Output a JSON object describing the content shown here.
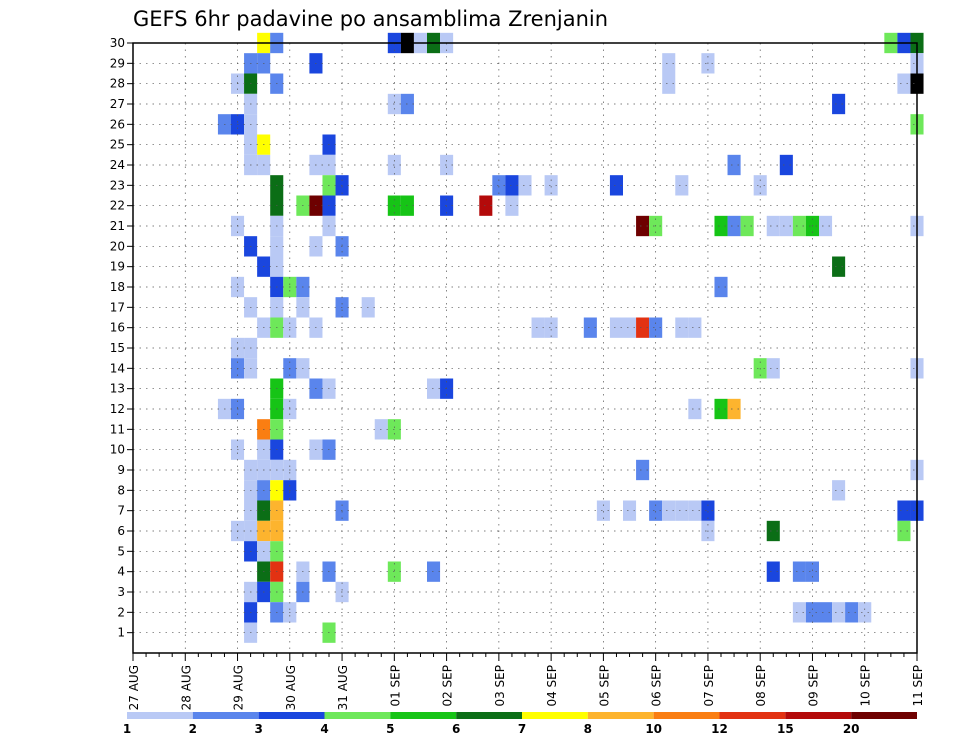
{
  "chart_data": {
    "type": "heatmap",
    "title": "GEFS 6hr padavine po ansamblima Zrenjanin",
    "xlabel": "",
    "ylabel": "",
    "x_tick_labels": [
      "27 AUG",
      "28 AUG",
      "29 AUG",
      "30 AUG",
      "31 AUG",
      "01 SEP",
      "02 SEP",
      "03 SEP",
      "04 SEP",
      "05 SEP",
      "06 SEP",
      "07 SEP",
      "08 SEP",
      "09 SEP",
      "10 SEP",
      "11 SEP"
    ],
    "x_range_days": [
      0,
      15
    ],
    "time_step_hours": 6,
    "y_tick_labels": [
      1,
      2,
      3,
      4,
      5,
      6,
      7,
      8,
      9,
      10,
      11,
      12,
      13,
      14,
      15,
      16,
      17,
      18,
      19,
      20,
      21,
      22,
      23,
      24,
      25,
      26,
      27,
      28,
      29,
      30
    ],
    "y_range": [
      0,
      30
    ],
    "grid": "dotted",
    "colorbar": {
      "position": "bottom",
      "labels": [
        "1",
        "2",
        "3",
        "4",
        "5",
        "6",
        "7",
        "8",
        "10",
        "12",
        "15",
        "20"
      ],
      "colors": [
        "#b9c9f5",
        "#5a85ec",
        "#1a46de",
        "#6ee85a",
        "#16c416",
        "#0b6e16",
        "#ffff00",
        "#fdb42e",
        "#fa7e12",
        "#e23212",
        "#b40a0a",
        "#6e0000"
      ]
    },
    "cells": [
      [
        2.5,
        30,
        6
      ],
      [
        2.75,
        30,
        1
      ],
      [
        5,
        30,
        2
      ],
      [
        5.25,
        30,
        13
      ],
      [
        5.5,
        30,
        0
      ],
      [
        5.75,
        30,
        5
      ],
      [
        6,
        30,
        0
      ],
      [
        14.5,
        30,
        3
      ],
      [
        14.75,
        30,
        2
      ],
      [
        15,
        30,
        5
      ],
      [
        2.25,
        29,
        1
      ],
      [
        2.5,
        29,
        1
      ],
      [
        3.5,
        29,
        2
      ],
      [
        10.25,
        29,
        0
      ],
      [
        11,
        29,
        0
      ],
      [
        15,
        29,
        0
      ],
      [
        2,
        28,
        0
      ],
      [
        2.25,
        28,
        5
      ],
      [
        2.75,
        28,
        1
      ],
      [
        10.25,
        28,
        0
      ],
      [
        14.75,
        28,
        0
      ],
      [
        15,
        28,
        14
      ],
      [
        2.25,
        27,
        0
      ],
      [
        5,
        27,
        0
      ],
      [
        5.25,
        27,
        1
      ],
      [
        13.5,
        27,
        2
      ],
      [
        1.75,
        26,
        1
      ],
      [
        2,
        26,
        2
      ],
      [
        2.25,
        26,
        0
      ],
      [
        15,
        26,
        3
      ],
      [
        2.25,
        25,
        0
      ],
      [
        2.5,
        25,
        6
      ],
      [
        3.75,
        25,
        2
      ],
      [
        2.25,
        24,
        0
      ],
      [
        2.5,
        24,
        0
      ],
      [
        3.5,
        24,
        0
      ],
      [
        3.75,
        24,
        0
      ],
      [
        5,
        24,
        0
      ],
      [
        6,
        24,
        0
      ],
      [
        11.5,
        24,
        1
      ],
      [
        12.5,
        24,
        2
      ],
      [
        2.75,
        23,
        5
      ],
      [
        3.75,
        23,
        3
      ],
      [
        4,
        23,
        2
      ],
      [
        7,
        23,
        1
      ],
      [
        7.25,
        23,
        2
      ],
      [
        7.5,
        23,
        0
      ],
      [
        8,
        23,
        0
      ],
      [
        9.25,
        23,
        2
      ],
      [
        10.5,
        23,
        0
      ],
      [
        12,
        23,
        0
      ],
      [
        2.75,
        22,
        5
      ],
      [
        3.25,
        22,
        3
      ],
      [
        3.5,
        22,
        11
      ],
      [
        3.75,
        22,
        2
      ],
      [
        5,
        22,
        4
      ],
      [
        5.25,
        22,
        4
      ],
      [
        6,
        22,
        2
      ],
      [
        6.75,
        22,
        10
      ],
      [
        7.25,
        22,
        0
      ],
      [
        2,
        21,
        0
      ],
      [
        2.75,
        21,
        0
      ],
      [
        3.75,
        21,
        0
      ],
      [
        9.75,
        21,
        11
      ],
      [
        10,
        21,
        3
      ],
      [
        11.25,
        21,
        4
      ],
      [
        11.5,
        21,
        1
      ],
      [
        11.75,
        21,
        3
      ],
      [
        12.25,
        21,
        0
      ],
      [
        12.5,
        21,
        0
      ],
      [
        12.75,
        21,
        3
      ],
      [
        13,
        21,
        4
      ],
      [
        13.25,
        21,
        0
      ],
      [
        15,
        21,
        0
      ],
      [
        2.25,
        20,
        2
      ],
      [
        2.75,
        20,
        0
      ],
      [
        3.5,
        20,
        0
      ],
      [
        4,
        20,
        1
      ],
      [
        2.5,
        19,
        2
      ],
      [
        2.75,
        19,
        0
      ],
      [
        13.5,
        19,
        5
      ],
      [
        2,
        18,
        0
      ],
      [
        2.75,
        18,
        2
      ],
      [
        3,
        18,
        3
      ],
      [
        3.25,
        18,
        1
      ],
      [
        11.25,
        18,
        1
      ],
      [
        2.25,
        17,
        0
      ],
      [
        2.75,
        17,
        0
      ],
      [
        3.25,
        17,
        0
      ],
      [
        4,
        17,
        1
      ],
      [
        4.5,
        17,
        0
      ],
      [
        2.5,
        16,
        0
      ],
      [
        2.75,
        16,
        3
      ],
      [
        3,
        16,
        0
      ],
      [
        3.5,
        16,
        0
      ],
      [
        7.75,
        16,
        0
      ],
      [
        8,
        16,
        0
      ],
      [
        8.75,
        16,
        1
      ],
      [
        9.25,
        16,
        0
      ],
      [
        9.5,
        16,
        0
      ],
      [
        9.75,
        16,
        9
      ],
      [
        10,
        16,
        1
      ],
      [
        10.5,
        16,
        0
      ],
      [
        10.75,
        16,
        0
      ],
      [
        2,
        15,
        0
      ],
      [
        2.25,
        15,
        0
      ],
      [
        2,
        14,
        1
      ],
      [
        2.25,
        14,
        0
      ],
      [
        3,
        14,
        1
      ],
      [
        3.25,
        14,
        0
      ],
      [
        12,
        14,
        3
      ],
      [
        12.25,
        14,
        0
      ],
      [
        15,
        14,
        0
      ],
      [
        2.75,
        13,
        4
      ],
      [
        3.5,
        13,
        1
      ],
      [
        3.75,
        13,
        0
      ],
      [
        5.75,
        13,
        0
      ],
      [
        6,
        13,
        2
      ],
      [
        1.75,
        12,
        0
      ],
      [
        2,
        12,
        1
      ],
      [
        2.75,
        12,
        4
      ],
      [
        3,
        12,
        0
      ],
      [
        10.75,
        12,
        0
      ],
      [
        11.25,
        12,
        4
      ],
      [
        11.5,
        12,
        7
      ],
      [
        2.5,
        11,
        8
      ],
      [
        2.75,
        11,
        3
      ],
      [
        4.75,
        11,
        0
      ],
      [
        5,
        11,
        3
      ],
      [
        2,
        10,
        0
      ],
      [
        2.5,
        10,
        0
      ],
      [
        2.75,
        10,
        2
      ],
      [
        3.5,
        10,
        0
      ],
      [
        3.75,
        10,
        1
      ],
      [
        2.25,
        9,
        0
      ],
      [
        2.5,
        9,
        0
      ],
      [
        2.75,
        9,
        0
      ],
      [
        3,
        9,
        0
      ],
      [
        9.75,
        9,
        1
      ],
      [
        15,
        9,
        0
      ],
      [
        2.25,
        8,
        0
      ],
      [
        2.5,
        8,
        1
      ],
      [
        2.75,
        8,
        6
      ],
      [
        3,
        8,
        2
      ],
      [
        13.5,
        8,
        0
      ],
      [
        2.25,
        7,
        0
      ],
      [
        2.5,
        7,
        5
      ],
      [
        2.75,
        7,
        7
      ],
      [
        4,
        7,
        1
      ],
      [
        9,
        7,
        0
      ],
      [
        9.5,
        7,
        0
      ],
      [
        10,
        7,
        1
      ],
      [
        10.25,
        7,
        0
      ],
      [
        10.5,
        7,
        0
      ],
      [
        10.75,
        7,
        0
      ],
      [
        11,
        7,
        2
      ],
      [
        14.75,
        7,
        2
      ],
      [
        15,
        7,
        2
      ],
      [
        2,
        6,
        0
      ],
      [
        2.25,
        6,
        0
      ],
      [
        2.5,
        6,
        7
      ],
      [
        2.75,
        6,
        7
      ],
      [
        11,
        6,
        0
      ],
      [
        12.25,
        6,
        5
      ],
      [
        14.75,
        6,
        3
      ],
      [
        2.25,
        5,
        2
      ],
      [
        2.5,
        5,
        0
      ],
      [
        2.75,
        5,
        3
      ],
      [
        2.5,
        4,
        5
      ],
      [
        2.75,
        4,
        9
      ],
      [
        3.25,
        4,
        0
      ],
      [
        3.75,
        4,
        1
      ],
      [
        5,
        4,
        3
      ],
      [
        5.75,
        4,
        1
      ],
      [
        12.25,
        4,
        2
      ],
      [
        12.75,
        4,
        1
      ],
      [
        13,
        4,
        1
      ],
      [
        2.25,
        3,
        0
      ],
      [
        2.5,
        3,
        2
      ],
      [
        2.75,
        3,
        3
      ],
      [
        3.25,
        3,
        1
      ],
      [
        4,
        3,
        0
      ],
      [
        2.25,
        2,
        2
      ],
      [
        2.75,
        2,
        1
      ],
      [
        3,
        2,
        0
      ],
      [
        12.75,
        2,
        0
      ],
      [
        13,
        2,
        1
      ],
      [
        13.25,
        2,
        1
      ],
      [
        13.5,
        2,
        0
      ],
      [
        13.75,
        2,
        1
      ],
      [
        14,
        2,
        0
      ],
      [
        2.25,
        1,
        0
      ],
      [
        3.75,
        1,
        3
      ]
    ]
  }
}
